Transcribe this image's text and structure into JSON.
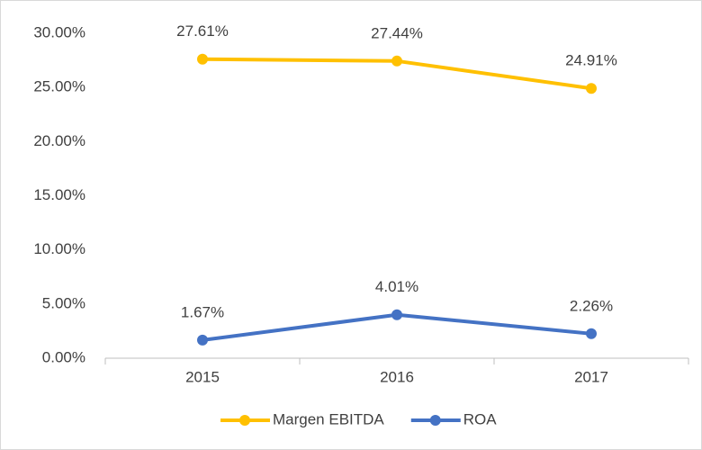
{
  "chart_data": {
    "type": "line",
    "categories": [
      "2015",
      "2016",
      "2017"
    ],
    "series": [
      {
        "name": "Margen EBITDA",
        "color": "#FFC000",
        "values": [
          27.61,
          27.44,
          24.91
        ],
        "value_labels": [
          "27.61%",
          "27.44%",
          "24.91%"
        ]
      },
      {
        "name": "ROA",
        "color": "#4472C4",
        "values": [
          1.67,
          4.01,
          2.26
        ],
        "value_labels": [
          "1.67%",
          "4.01%",
          "2.26%"
        ]
      }
    ],
    "ylim": [
      0,
      30
    ],
    "yticks": [
      {
        "value": 0,
        "label": "0.00%"
      },
      {
        "value": 5,
        "label": "5.00%"
      },
      {
        "value": 10,
        "label": "10.00%"
      },
      {
        "value": 15,
        "label": "15.00%"
      },
      {
        "value": 20,
        "label": "20.00%"
      },
      {
        "value": 25,
        "label": "25.00%"
      },
      {
        "value": 30,
        "label": "30.00%"
      }
    ],
    "grid": false,
    "legend": "bottom"
  }
}
